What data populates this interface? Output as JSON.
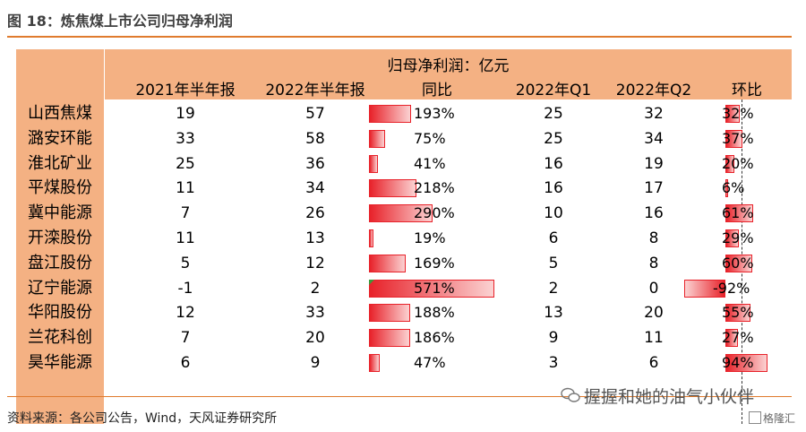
{
  "figure": {
    "title": "图 18：炼焦煤上市公司归母净利润",
    "unit_title": "归母净利润：亿元",
    "source": "资料来源：各公司公告，Wind，天风证券研究所",
    "watermark": "握握和她的油气小伙伴",
    "watermark_sub": "格隆汇",
    "colors": {
      "accent": "#e07b2e",
      "header_bg": "#f4b183",
      "bar": "#e8222a",
      "marker": "#3a9a3a"
    }
  },
  "columns": [
    "2021年半年报",
    "2022年半年报",
    "同比",
    "2022年Q1",
    "2022年Q2",
    "环比"
  ],
  "rows": [
    {
      "name": "山西焦煤",
      "h1_2021": "19",
      "h1_2022": "57",
      "yoy": "193%",
      "yoy_value": 193,
      "q1": "25",
      "q2": "32",
      "qoq": "32%",
      "qoq_value": 32
    },
    {
      "name": "潞安环能",
      "h1_2021": "33",
      "h1_2022": "58",
      "yoy": "75%",
      "yoy_value": 75,
      "q1": "25",
      "q2": "34",
      "qoq": "37%",
      "qoq_value": 37
    },
    {
      "name": "淮北矿业",
      "h1_2021": "25",
      "h1_2022": "36",
      "yoy": "41%",
      "yoy_value": 41,
      "q1": "16",
      "q2": "19",
      "qoq": "20%",
      "qoq_value": 20
    },
    {
      "name": "平煤股份",
      "h1_2021": "11",
      "h1_2022": "34",
      "yoy": "218%",
      "yoy_value": 218,
      "q1": "16",
      "q2": "17",
      "qoq": "6%",
      "qoq_value": 6
    },
    {
      "name": "冀中能源",
      "h1_2021": "7",
      "h1_2022": "26",
      "yoy": "290%",
      "yoy_value": 290,
      "q1": "10",
      "q2": "16",
      "qoq": "61%",
      "qoq_value": 61
    },
    {
      "name": "开滦股份",
      "h1_2021": "11",
      "h1_2022": "13",
      "yoy": "19%",
      "yoy_value": 19,
      "q1": "6",
      "q2": "8",
      "qoq": "29%",
      "qoq_value": 29
    },
    {
      "name": "盘江股份",
      "h1_2021": "5",
      "h1_2022": "12",
      "yoy": "169%",
      "yoy_value": 169,
      "q1": "5",
      "q2": "8",
      "qoq": "60%",
      "qoq_value": 60
    },
    {
      "name": "辽宁能源",
      "h1_2021": "-1",
      "h1_2022": "2",
      "yoy": "571%",
      "yoy_value": 571,
      "q1": "2",
      "q2": "0",
      "qoq": "-92%",
      "qoq_value": -92
    },
    {
      "name": "华阳股份",
      "h1_2021": "12",
      "h1_2022": "33",
      "yoy": "188%",
      "yoy_value": 188,
      "q1": "13",
      "q2": "20",
      "qoq": "55%",
      "qoq_value": 55
    },
    {
      "name": "兰花科创",
      "h1_2021": "7",
      "h1_2022": "20",
      "yoy": "186%",
      "yoy_value": 186,
      "q1": "9",
      "q2": "11",
      "qoq": "27%",
      "qoq_value": 27
    },
    {
      "name": "昊华能源",
      "h1_2021": "6",
      "h1_2022": "9",
      "yoy": "47%",
      "yoy_value": 47,
      "q1": "3",
      "q2": "6",
      "qoq": "94%",
      "qoq_value": 94
    }
  ]
}
